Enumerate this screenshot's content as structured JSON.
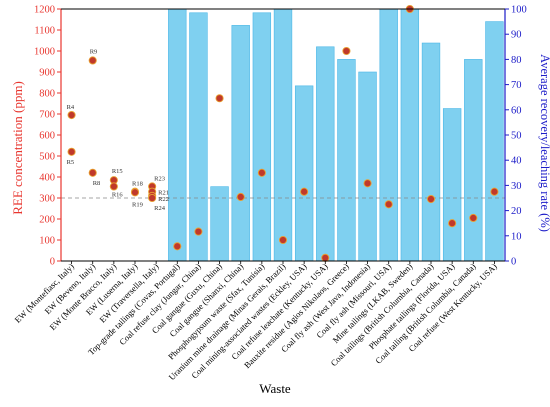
{
  "chart_data": {
    "type": "bar+scatter",
    "xlabel": "Waste",
    "y_left_label": "REE concentration (ppm)",
    "y_right_label": "Average recovery/leaching rate (%)",
    "y_left_lim": [
      0,
      1200
    ],
    "y_right_lim": [
      0,
      100
    ],
    "y_left_ticks": [
      0,
      100,
      200,
      300,
      400,
      500,
      600,
      700,
      800,
      900,
      1000,
      1100,
      1200
    ],
    "y_right_ticks": [
      0,
      10,
      20,
      30,
      40,
      50,
      60,
      70,
      80,
      90,
      100
    ],
    "reference_line_ppm": 300,
    "colors": {
      "bar": "#7fd0f0",
      "bar_edge": "#4ab6e6",
      "point": "#c0392b",
      "left_axis": "#e8362f",
      "right_axis": "#1c1cc8",
      "ref_line": "#888888"
    },
    "ew_categories": [
      "EW (Montefiasc, Italy)",
      "EW (Beveno, Italy)",
      "EW (Monte Bracco, Italy)",
      "EW (Luserna, Italy)",
      "EW (Traversella, Italy)"
    ],
    "ew_points": [
      {
        "label": "R4",
        "col": 0,
        "ppm": 695
      },
      {
        "label": "R5",
        "col": 0,
        "ppm": 520
      },
      {
        "label": "R9",
        "col": 1,
        "ppm": 955
      },
      {
        "label": "R8",
        "col": 1,
        "ppm": 420
      },
      {
        "label": "R15",
        "col": 2,
        "ppm": 385
      },
      {
        "label": "R16",
        "col": 2,
        "ppm": 355
      },
      {
        "label": "R18",
        "col": 3,
        "ppm": 330
      },
      {
        "label": "R19",
        "col": 3,
        "ppm": 327
      },
      {
        "label": "R23",
        "col": 4,
        "ppm": 355
      },
      {
        "label": "R21",
        "col": 4,
        "ppm": 330
      },
      {
        "label": "R22",
        "col": 4,
        "ppm": 310
      },
      {
        "label": "R24",
        "col": 4,
        "ppm": 300
      }
    ],
    "categories": [
      "Top-grade tailings (Covas, Portugal)",
      "Coal refuse clay (Jungar, China)",
      "Coal gangue (Guxu, China)",
      "Coal gangue (Shanxi, China)",
      "Phosphogypsum waste (Sfax, Tunisia)",
      "Uranium mine drainage (Minas Gerais, Brazil)",
      "Coal mining-associated wastes (Eckley, USA)",
      "Coal refuse leachate (Kentucky, USA)",
      "Bauxite residue (Agios Nikolaos, Greece)",
      "Coal fly ash (West Java, Indonesia)",
      "Coal fly ash (Missouri, USA)",
      "Mine tailings (LKAB, Sweden)",
      "Coal tailings (British Columbia, Canada)",
      "Phosphate tailings (Florida, USA)",
      "Coal tailing (British Columbia, Canada)",
      "Coal refuse (West Kentucky, USA)"
    ],
    "series": [
      {
        "name": "Average recovery/leaching rate (%)",
        "axis": "right",
        "values": [
          100,
          98.5,
          29.5,
          93.5,
          98.5,
          100,
          69.5,
          85,
          80,
          75,
          100,
          100,
          86.5,
          60.5,
          80,
          95
        ]
      },
      {
        "name": "REE concentration (ppm)",
        "axis": "left",
        "values": [
          70,
          140,
          775,
          305,
          420,
          100,
          330,
          15,
          1000,
          370,
          270,
          1200,
          295,
          180,
          205,
          330
        ]
      }
    ]
  }
}
